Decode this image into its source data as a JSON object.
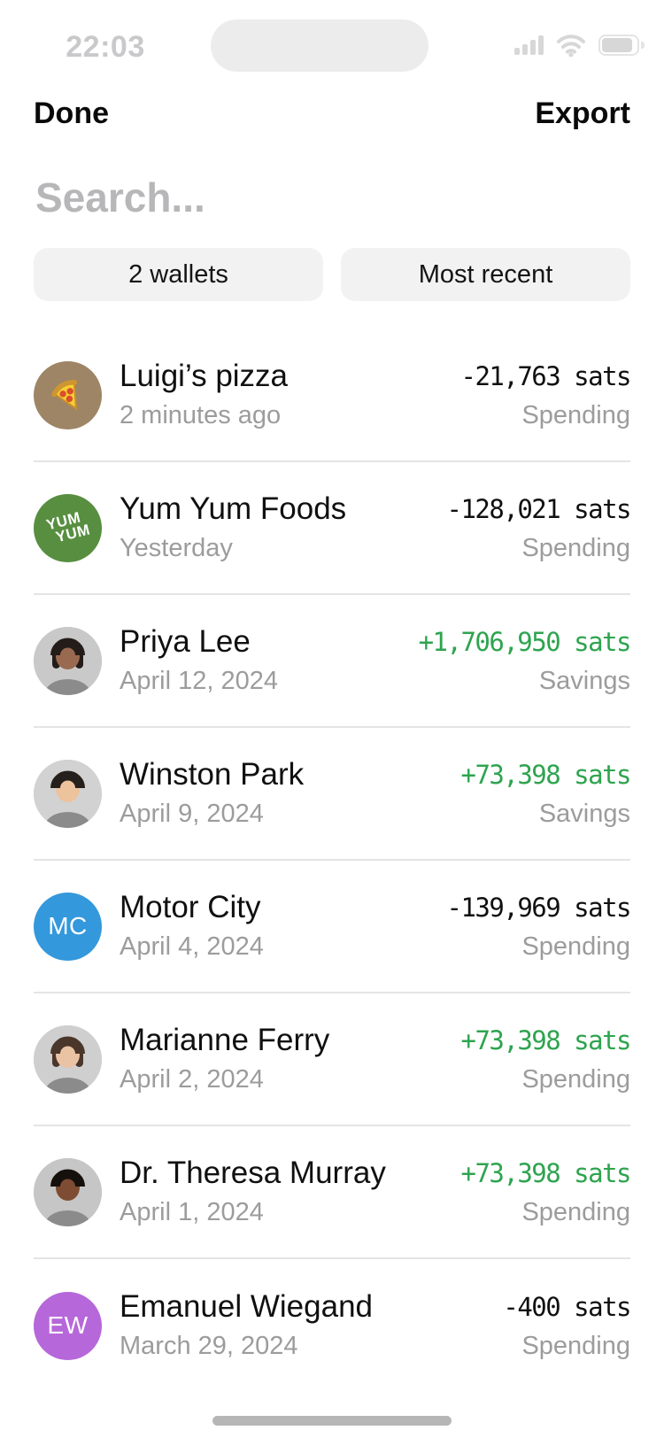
{
  "status_bar": {
    "time": "22:03",
    "icons": {
      "cellular": "cellular-signal-icon",
      "wifi": "wifi-icon",
      "battery": "battery-icon"
    }
  },
  "nav": {
    "done_label": "Done",
    "export_label": "Export"
  },
  "search": {
    "value": "",
    "placeholder": "Search..."
  },
  "filters": {
    "wallets_label": "2 wallets",
    "sort_label": "Most recent"
  },
  "transactions": [
    {
      "name": "Luigi’s pizza",
      "date": "2 minutes ago",
      "amount": "-21,763 sats",
      "account": "Spending",
      "direction": "outgoing",
      "avatar": {
        "kind": "pizza",
        "icon": "pizza-icon",
        "bg": "#9E8566"
      }
    },
    {
      "name": "Yum Yum Foods",
      "date": "Yesterday",
      "amount": "-128,021 sats",
      "account": "Spending",
      "direction": "outgoing",
      "avatar": {
        "kind": "badge",
        "bg": "#578E40",
        "lines": [
          "YUM",
          "YUM"
        ]
      }
    },
    {
      "name": "Priya Lee",
      "date": "April 12, 2024",
      "amount": "+1,706,950 sats",
      "account": "Savings",
      "direction": "incoming",
      "avatar": {
        "kind": "photo",
        "bg": "#c9c9c9",
        "skin": "#9a6a50",
        "hair": "#241c18",
        "long": true
      }
    },
    {
      "name": "Winston Park",
      "date": "April 9, 2024",
      "amount": "+73,398 sats",
      "account": "Savings",
      "direction": "incoming",
      "avatar": {
        "kind": "photo",
        "bg": "#d2d2d2",
        "skin": "#ecc39c",
        "hair": "#26201c",
        "long": false
      }
    },
    {
      "name": "Motor City",
      "date": "April 4, 2024",
      "amount": "-139,969 sats",
      "account": "Spending",
      "direction": "outgoing",
      "avatar": {
        "kind": "initials",
        "bg": "#3398DC",
        "text": "MC"
      }
    },
    {
      "name": "Marianne Ferry",
      "date": "April 2, 2024",
      "amount": "+73,398 sats",
      "account": "Spending",
      "direction": "incoming",
      "avatar": {
        "kind": "photo",
        "bg": "#cfcfcf",
        "skin": "#eac3a4",
        "hair": "#4a362a",
        "long": true
      }
    },
    {
      "name": "Dr. Theresa Murray",
      "date": "April 1, 2024",
      "amount": "+73,398 sats",
      "account": "Spending",
      "direction": "incoming",
      "avatar": {
        "kind": "photo",
        "bg": "#c6c6c6",
        "skin": "#7d4c33",
        "hair": "#16100c",
        "long": false
      }
    },
    {
      "name": "Emanuel Wiegand",
      "date": "March 29, 2024",
      "amount": "-400 sats",
      "account": "Spending",
      "direction": "outgoing",
      "avatar": {
        "kind": "initials",
        "bg": "#B667D9",
        "text": "EW"
      }
    }
  ],
  "colors": {
    "positive_amount": "#2EA44F",
    "negative_amount": "#101010",
    "secondary_text": "#9C9C9C",
    "chip_background": "#F2F2F3",
    "divider": "#E4E4E4",
    "status_bar_dimmed": "#D7D7D7"
  }
}
